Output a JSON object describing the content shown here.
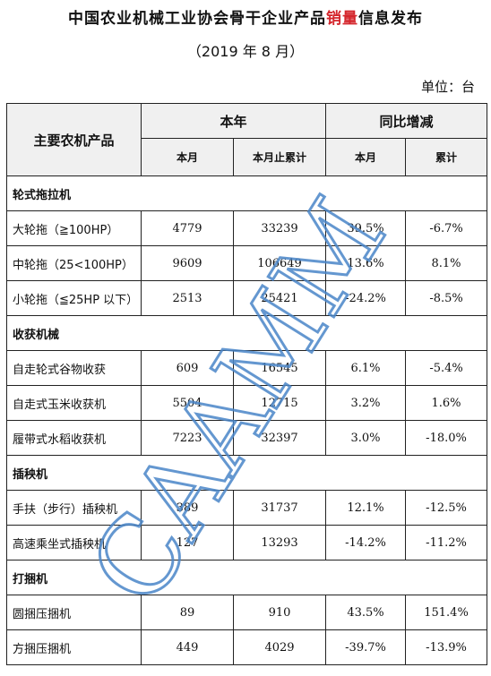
{
  "header": {
    "title_prefix": "中国农业机械工业协会骨干企业产品",
    "title_highlight": "销量",
    "title_suffix": "信息发布",
    "subtitle": "（2019 年 8 月）",
    "unit": "单位：台"
  },
  "table": {
    "col_product": "主要农机产品",
    "group_current": "本年",
    "group_yoy": "同比增减",
    "sub_month": "本月",
    "sub_cumulative": "本月止累计",
    "sub_yoy_month": "本月",
    "sub_yoy_cumulative": "累计",
    "categories": [
      {
        "name": "轮式拖拉机",
        "rows": [
          {
            "name": "大轮拖（≧100HP）",
            "month": "4779",
            "cumulative": "33239",
            "yoy_month": "39.5%",
            "yoy_cumulative": "-6.7%"
          },
          {
            "name": "中轮拖（25<100HP）",
            "month": "9609",
            "cumulative": "106649",
            "yoy_month": "13.6%",
            "yoy_cumulative": "8.1%"
          },
          {
            "name": "小轮拖（≦25HP 以下）",
            "month": "2513",
            "cumulative": "25421",
            "yoy_month": "-24.2%",
            "yoy_cumulative": "-8.5%"
          }
        ]
      },
      {
        "name": "收获机械",
        "rows": [
          {
            "name": "自走轮式谷物收获",
            "month": "609",
            "cumulative": "16545",
            "yoy_month": "6.1%",
            "yoy_cumulative": "-5.4%"
          },
          {
            "name": "自走式玉米收获机",
            "month": "5504",
            "cumulative": "12715",
            "yoy_month": "3.2%",
            "yoy_cumulative": "1.6%"
          },
          {
            "name": "履带式水稻收获机",
            "month": "7223",
            "cumulative": "32397",
            "yoy_month": "3.0%",
            "yoy_cumulative": "-18.0%"
          }
        ]
      },
      {
        "name": "插秧机",
        "rows": [
          {
            "name": "手扶（步行）插秧机",
            "month": "389",
            "cumulative": "31737",
            "yoy_month": "12.1%",
            "yoy_cumulative": "-12.5%"
          },
          {
            "name": "高速乘坐式插秧机",
            "month": "127",
            "cumulative": "13293",
            "yoy_month": "-14.2%",
            "yoy_cumulative": "-11.2%"
          }
        ]
      },
      {
        "name": "打捆机",
        "rows": [
          {
            "name": "圆捆压捆机",
            "month": "89",
            "cumulative": "910",
            "yoy_month": "43.5%",
            "yoy_cumulative": "151.4%"
          },
          {
            "name": "方捆压捆机",
            "month": "449",
            "cumulative": "4029",
            "yoy_month": "-39.7%",
            "yoy_cumulative": "-13.9%"
          }
        ]
      }
    ]
  },
  "watermark": {
    "text": "CAAMM",
    "color": "#4a86c8"
  }
}
